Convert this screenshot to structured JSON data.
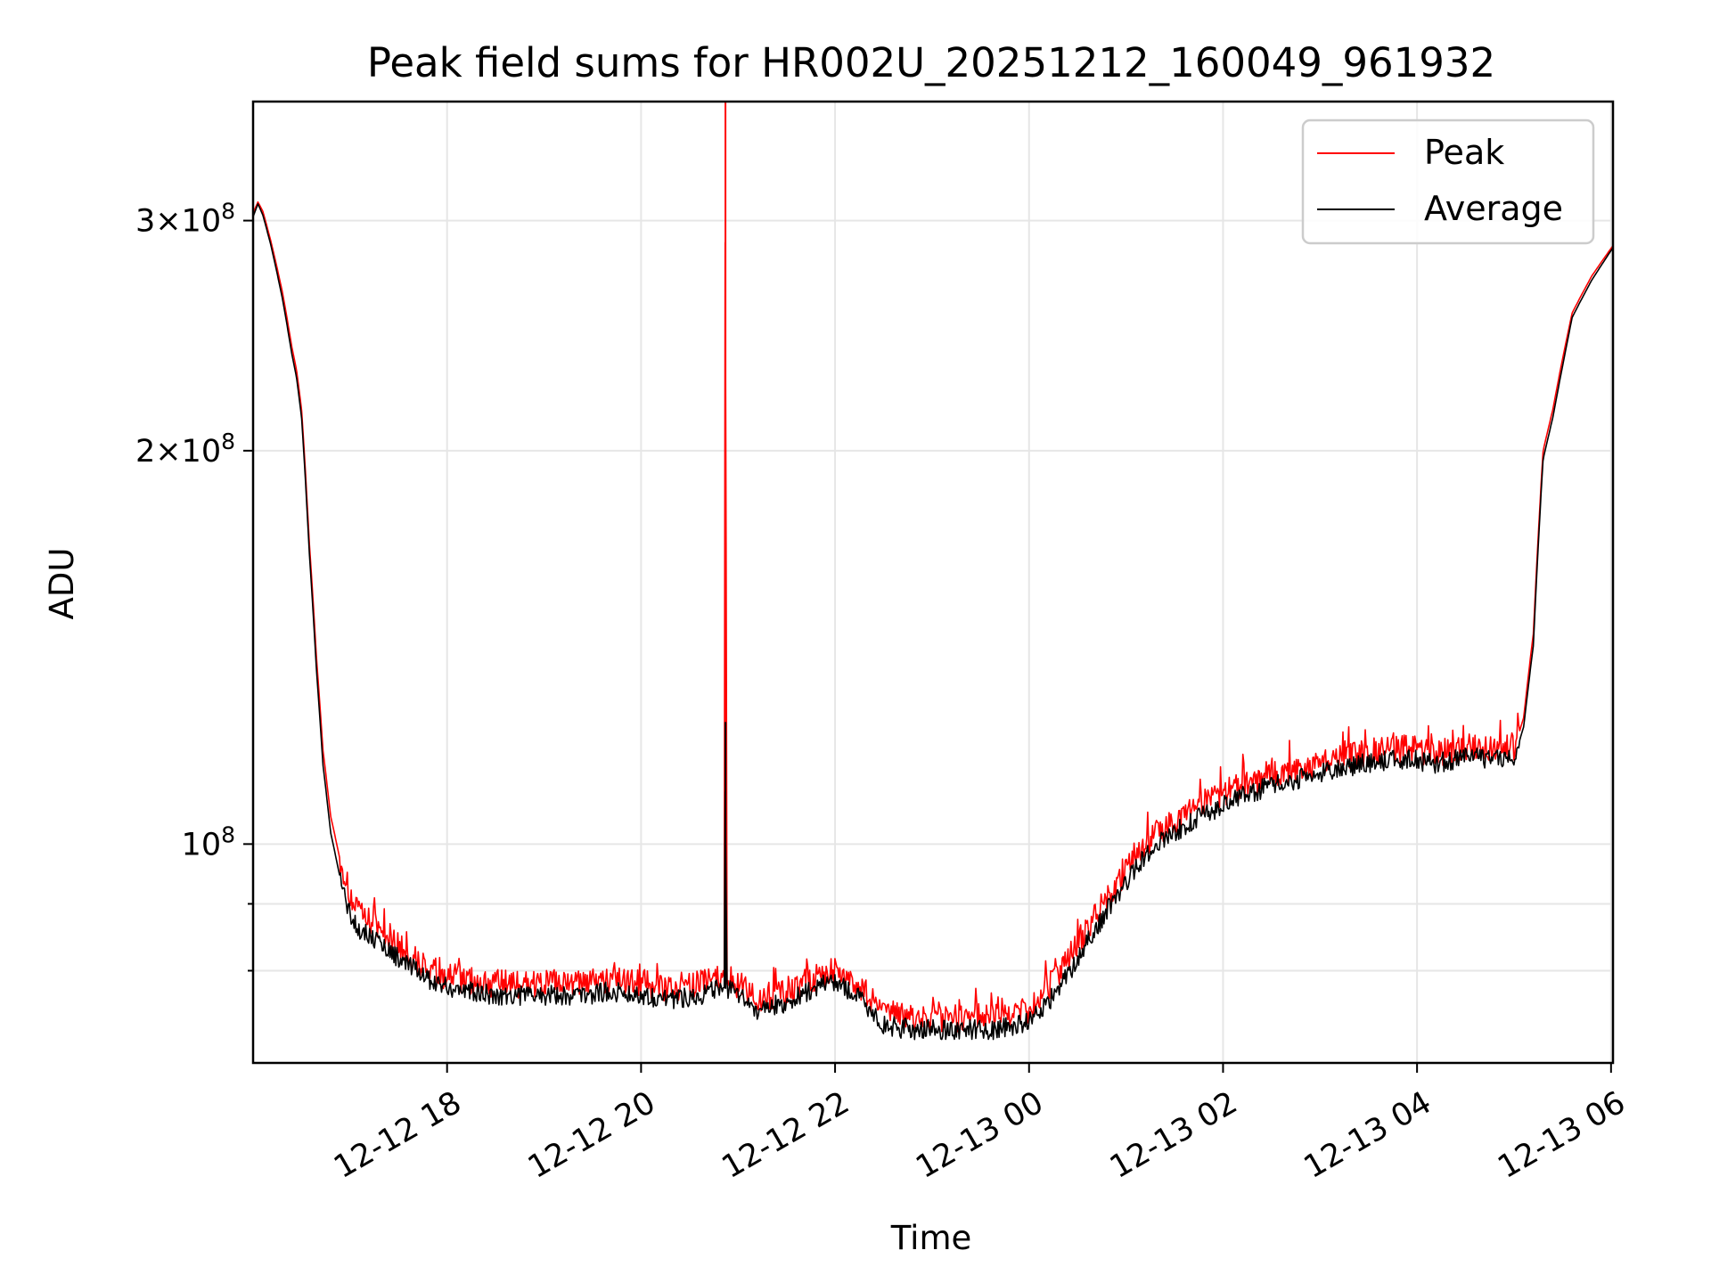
{
  "chart_data": {
    "type": "line",
    "title": "Peak field sums for HR002U_20251212_160049_961932",
    "xlabel": "Time",
    "ylabel": "ADU",
    "yscale": "log",
    "ylim": [
      68000000,
      370000000
    ],
    "xlim_hours": [
      16.0,
      30.02
    ],
    "x_unit": "hours since 2025-12-12 00:00",
    "x_ticks": [
      {
        "value": 18,
        "label": "12-12 18"
      },
      {
        "value": 20,
        "label": "12-12 20"
      },
      {
        "value": 22,
        "label": "12-12 22"
      },
      {
        "value": 24,
        "label": "12-13 00"
      },
      {
        "value": 26,
        "label": "12-13 02"
      },
      {
        "value": 28,
        "label": "12-13 04"
      },
      {
        "value": 30,
        "label": "12-13 06"
      }
    ],
    "y_ticks": [
      {
        "value": 100000000,
        "base": "10",
        "exp": "8",
        "coef": ""
      },
      {
        "value": 200000000,
        "base": "10",
        "exp": "8",
        "coef": "2×"
      },
      {
        "value": 300000000,
        "base": "10",
        "exp": "8",
        "coef": "3×"
      }
    ],
    "y_minor_ticks": [
      80000000,
      90000000
    ],
    "grid": true,
    "legend": {
      "position": "top-right",
      "entries": [
        {
          "name": "Peak",
          "color": "#ff0000"
        },
        {
          "name": "Average",
          "color": "#000000"
        }
      ]
    },
    "series": [
      {
        "name": "Peak",
        "color": "#ff0000",
        "x": [
          16.0,
          16.05,
          16.1,
          16.18,
          16.3,
          16.4,
          16.45,
          16.5,
          16.58,
          16.65,
          16.72,
          16.8,
          16.9,
          17.0,
          17.1,
          17.3,
          17.6,
          17.9,
          18.2,
          18.5,
          18.8,
          19.1,
          19.4,
          19.7,
          20.0,
          20.3,
          20.6,
          20.86,
          20.87,
          20.88,
          21.2,
          21.5,
          21.8,
          22.0,
          22.3,
          22.5,
          22.8,
          23.1,
          23.4,
          23.7,
          24.0,
          24.3,
          24.6,
          24.9,
          25.2,
          25.5,
          25.8,
          26.1,
          26.4,
          26.7,
          27.0,
          27.3,
          27.6,
          27.9,
          28.2,
          28.5,
          28.8,
          29.0,
          29.1,
          29.2,
          29.3,
          29.4,
          29.5,
          29.6,
          29.8,
          30.02
        ],
        "y": [
          304000000,
          310000000,
          305000000,
          290000000,
          265000000,
          240000000,
          230000000,
          215000000,
          170000000,
          140000000,
          118000000,
          105000000,
          97000000,
          91000000,
          88000000,
          86000000,
          82000000,
          79500000,
          78500000,
          78000000,
          78000000,
          78000000,
          78000000,
          78500000,
          78000000,
          77500000,
          78000000,
          79000000,
          370000000,
          79000000,
          76000000,
          77000000,
          79000000,
          80000000,
          77000000,
          74000000,
          73500000,
          73500000,
          73500000,
          73500000,
          74500000,
          79000000,
          86000000,
          93000000,
          100000000,
          104000000,
          107000000,
          110000000,
          112000000,
          113500000,
          115000000,
          116500000,
          117500000,
          118000000,
          117000000,
          118500000,
          118000000,
          118000000,
          125000000,
          145000000,
          200000000,
          215000000,
          235000000,
          255000000,
          272000000,
          287000000
        ]
      },
      {
        "name": "Average",
        "color": "#000000",
        "x": [
          16.0,
          16.05,
          16.1,
          16.18,
          16.3,
          16.4,
          16.45,
          16.5,
          16.58,
          16.65,
          16.72,
          16.8,
          16.9,
          17.0,
          17.1,
          17.3,
          17.6,
          17.9,
          18.2,
          18.5,
          18.8,
          19.1,
          19.4,
          19.7,
          20.0,
          20.3,
          20.6,
          20.86,
          20.87,
          20.88,
          21.2,
          21.5,
          21.8,
          22.0,
          22.3,
          22.5,
          22.8,
          23.1,
          23.4,
          23.7,
          24.0,
          24.3,
          24.6,
          24.9,
          25.2,
          25.5,
          25.8,
          26.1,
          26.4,
          26.7,
          27.0,
          27.3,
          27.6,
          27.9,
          28.2,
          28.5,
          28.8,
          29.0,
          29.1,
          29.2,
          29.3,
          29.4,
          29.5,
          29.6,
          29.8,
          30.02
        ],
        "y": [
          302000000,
          309000000,
          303000000,
          288000000,
          262000000,
          237000000,
          227000000,
          212000000,
          167000000,
          137000000,
          115000000,
          102000000,
          94000000,
          88000000,
          86000000,
          84000000,
          80500000,
          78000000,
          77000000,
          76500000,
          76500000,
          76500000,
          76500000,
          77000000,
          76500000,
          76000000,
          76500000,
          77500000,
          124000000,
          77500000,
          74500000,
          75500000,
          77500000,
          78500000,
          75500000,
          72500000,
          72000000,
          72000000,
          72000000,
          72000000,
          73000000,
          77000000,
          84000000,
          91000000,
          98000000,
          102000000,
          105000000,
          108000000,
          110000000,
          111500000,
          113000000,
          114500000,
          115500000,
          116000000,
          115000000,
          116500000,
          116000000,
          116000000,
          123000000,
          142000000,
          197000000,
          212000000,
          232000000,
          253000000,
          270000000,
          286000000
        ]
      }
    ]
  }
}
